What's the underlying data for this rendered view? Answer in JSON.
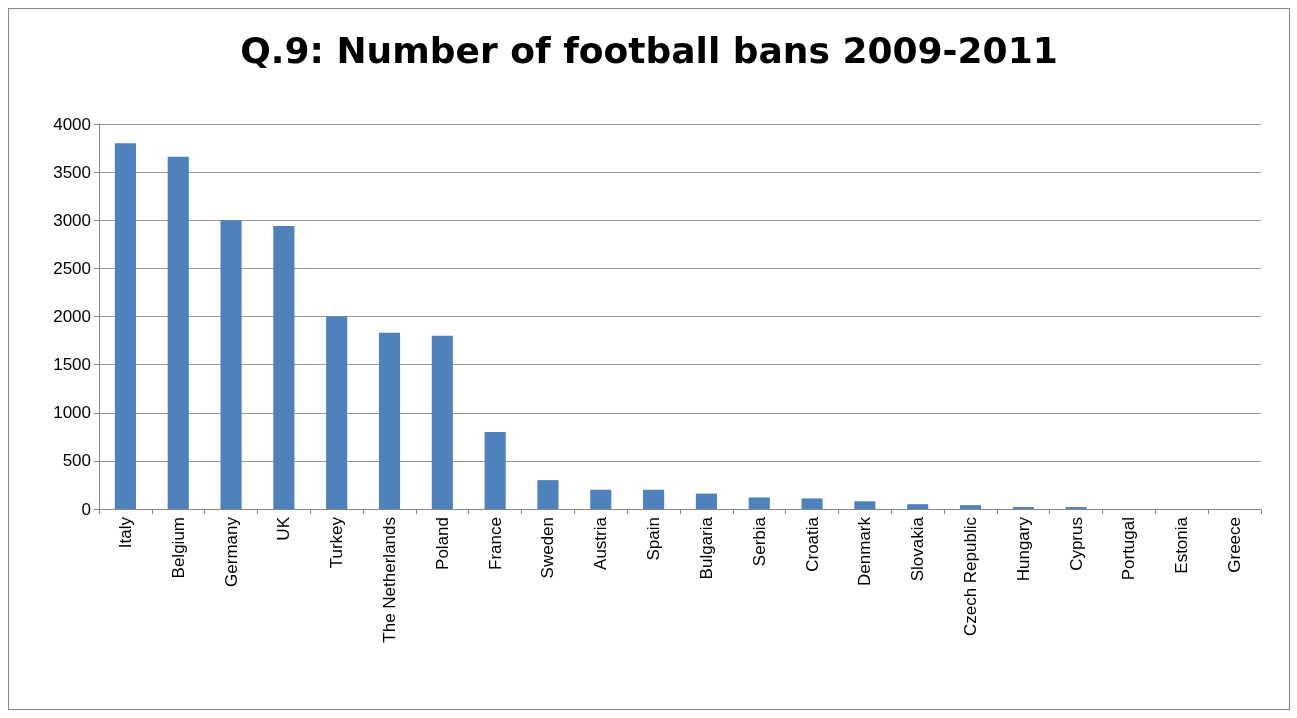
{
  "chart_data": {
    "type": "bar",
    "title": "Q.9: Number of football bans 2009-2011",
    "categories": [
      "Italy",
      "Belgium",
      "Germany",
      "UK",
      "Turkey",
      "The Netherlands",
      "Poland",
      "France",
      "Sweden",
      "Austria",
      "Spain",
      "Bulgaria",
      "Serbia",
      "Croatia",
      "Denmark",
      "Slovakia",
      "Czech Republic",
      "Hungary",
      "Cyprus",
      "Portugal",
      "Estonia",
      "Greece"
    ],
    "values": [
      3800,
      3660,
      3000,
      2940,
      2000,
      1830,
      1800,
      800,
      300,
      200,
      200,
      160,
      120,
      110,
      80,
      50,
      40,
      20,
      20,
      0,
      0,
      0
    ],
    "color": "#4f81bd",
    "ylim": [
      0,
      4000
    ],
    "yticks": [
      0,
      500,
      1000,
      1500,
      2000,
      2500,
      3000,
      3500,
      4000
    ],
    "grid": "y"
  }
}
